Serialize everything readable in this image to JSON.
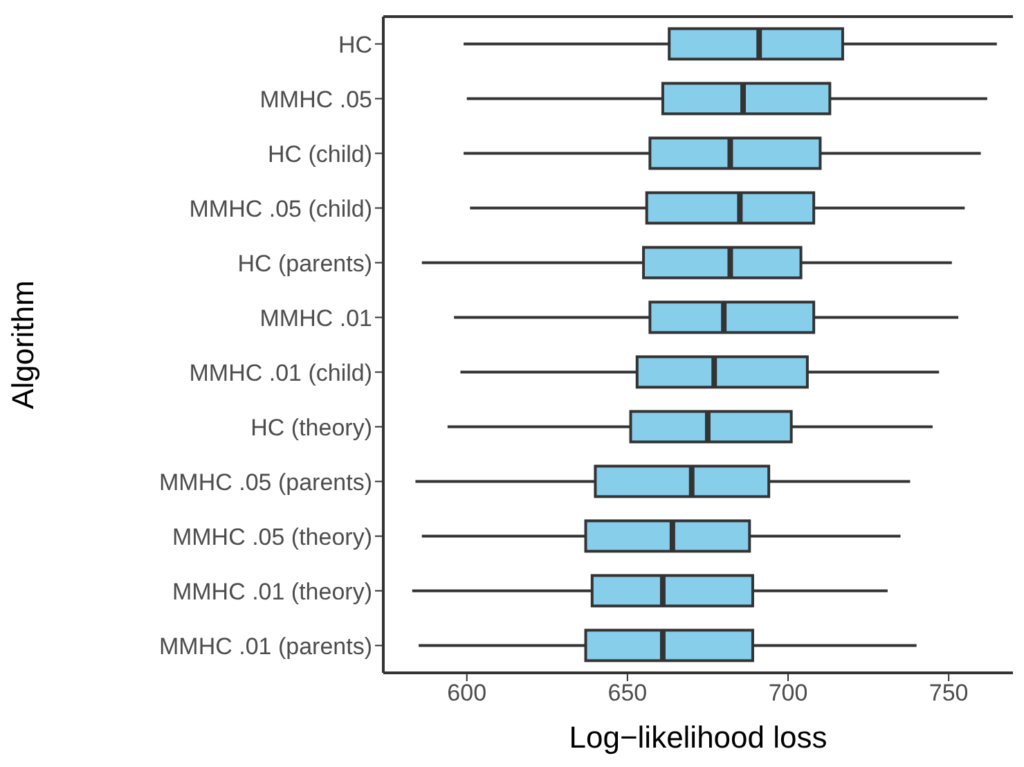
{
  "chart_data": {
    "type": "box",
    "orientation": "horizontal",
    "xlabel": "Log−likelihood loss",
    "ylabel": "Algorithm",
    "categories": [
      "HC",
      "MMHC .05",
      "HC (child)",
      "MMHC .05 (child)",
      "HC (parents)",
      "MMHC .01",
      "MMHC .01 (child)",
      "HC (theory)",
      "MMHC .05 (parents)",
      "MMHC .05 (theory)",
      "MMHC .01 (theory)",
      "MMHC .01 (parents)"
    ],
    "xlim": [
      574,
      770
    ],
    "xticks": [
      600,
      650,
      700,
      750
    ],
    "grid": false,
    "legend": false,
    "series": [
      {
        "color": "#87ceeb",
        "boxes": [
          {
            "low": 599,
            "q1": 663,
            "median": 691,
            "q3": 717,
            "high": 765
          },
          {
            "low": 600,
            "q1": 661,
            "median": 686,
            "q3": 713,
            "high": 762
          },
          {
            "low": 599,
            "q1": 657,
            "median": 682,
            "q3": 710,
            "high": 760
          },
          {
            "low": 601,
            "q1": 656,
            "median": 685,
            "q3": 708,
            "high": 755
          },
          {
            "low": 586,
            "q1": 655,
            "median": 682,
            "q3": 704,
            "high": 751
          },
          {
            "low": 596,
            "q1": 657,
            "median": 680,
            "q3": 708,
            "high": 753
          },
          {
            "low": 598,
            "q1": 653,
            "median": 677,
            "q3": 706,
            "high": 747
          },
          {
            "low": 594,
            "q1": 651,
            "median": 675,
            "q3": 701,
            "high": 745
          },
          {
            "low": 584,
            "q1": 640,
            "median": 670,
            "q3": 694,
            "high": 738
          },
          {
            "low": 586,
            "q1": 637,
            "median": 664,
            "q3": 688,
            "high": 735
          },
          {
            "low": 583,
            "q1": 639,
            "median": 661,
            "q3": 689,
            "high": 731
          },
          {
            "low": 585,
            "q1": 637,
            "median": 661,
            "q3": 689,
            "high": 740
          }
        ]
      }
    ]
  }
}
